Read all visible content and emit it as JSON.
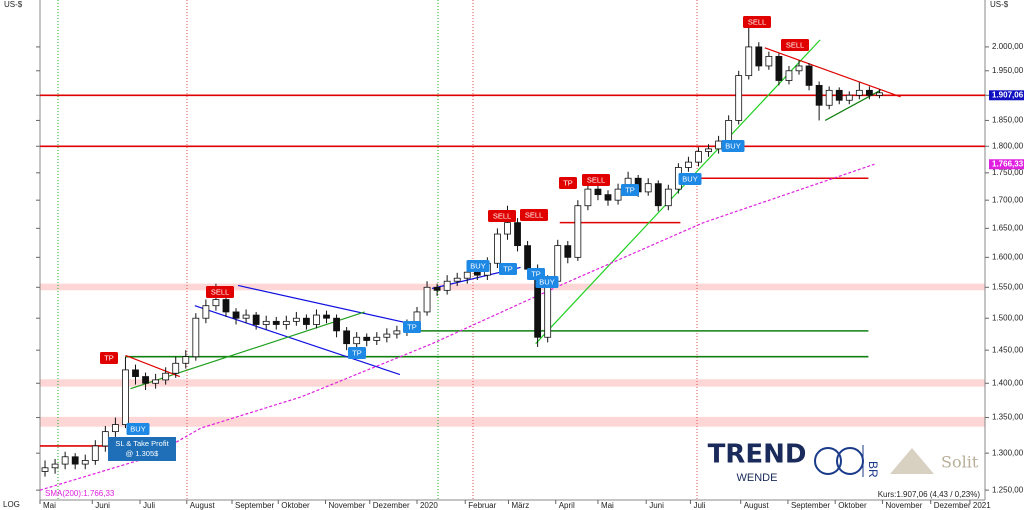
{
  "chart_data": {
    "type": "candlestick",
    "unit_left": "US-$",
    "unit_right": "US-$",
    "scale_label": "LOG",
    "log": true,
    "ylim": [
      1237,
      2102
    ],
    "yticks": [
      {
        "value": 1250,
        "label": "1.250,00"
      },
      {
        "value": 1300,
        "label": "1.300,00"
      },
      {
        "value": 1350,
        "label": "1.350,00"
      },
      {
        "value": 1400,
        "label": "1.400,00"
      },
      {
        "value": 1450,
        "label": "1.450,00"
      },
      {
        "value": 1500,
        "label": "1.500,00"
      },
      {
        "value": 1550,
        "label": "1.550,00"
      },
      {
        "value": 1600,
        "label": "1.600,00"
      },
      {
        "value": 1650,
        "label": "1.650,00"
      },
      {
        "value": 1700,
        "label": "1.700,00"
      },
      {
        "value": 1750,
        "label": "1.750,00"
      },
      {
        "value": 1800,
        "label": "1.800,00"
      },
      {
        "value": 1850,
        "label": "1.850,00"
      },
      {
        "value": 1900,
        "label": "1.900,00"
      },
      {
        "value": 1950,
        "label": "1.950,00"
      },
      {
        "value": 2000,
        "label": "2.000,00"
      }
    ],
    "xlim": [
      0,
      94
    ],
    "xticks": [
      {
        "value": 0,
        "label": "Mai"
      },
      {
        "value": 5.2,
        "label": "Juni"
      },
      {
        "value": 9.95,
        "label": "Juli"
      },
      {
        "value": 14.6,
        "label": "August"
      },
      {
        "value": 19.1,
        "label": "September"
      },
      {
        "value": 23.7,
        "label": "Oktober"
      },
      {
        "value": 28.4,
        "label": "November"
      },
      {
        "value": 32.8,
        "label": "Dezember"
      },
      {
        "value": 37.5,
        "label": "2020"
      },
      {
        "value": 42.3,
        "label": "Februar"
      },
      {
        "value": 46.6,
        "label": "März"
      },
      {
        "value": 51.3,
        "label": "April"
      },
      {
        "value": 55.5,
        "label": "Mai"
      },
      {
        "value": 60.3,
        "label": "Juni"
      },
      {
        "value": 64.7,
        "label": "Juli"
      },
      {
        "value": 69.7,
        "label": "August"
      },
      {
        "value": 74.4,
        "label": "September"
      },
      {
        "value": 79.1,
        "label": "Oktober"
      },
      {
        "value": 83.8,
        "label": "November"
      },
      {
        "value": 88.6,
        "label": "Dezember"
      },
      {
        "value": 92.5,
        "label": "2021"
      }
    ],
    "candles": [
      [
        1275,
        1290,
        1268,
        1280
      ],
      [
        1280,
        1292,
        1272,
        1285
      ],
      [
        1285,
        1302,
        1278,
        1295
      ],
      [
        1295,
        1300,
        1278,
        1285
      ],
      [
        1285,
        1298,
        1278,
        1290
      ],
      [
        1290,
        1318,
        1284,
        1310
      ],
      [
        1310,
        1338,
        1302,
        1330
      ],
      [
        1330,
        1350,
        1322,
        1340
      ],
      [
        1340,
        1440,
        1335,
        1420
      ],
      [
        1420,
        1428,
        1398,
        1410
      ],
      [
        1410,
        1416,
        1390,
        1400
      ],
      [
        1400,
        1414,
        1392,
        1405
      ],
      [
        1405,
        1424,
        1398,
        1415
      ],
      [
        1415,
        1440,
        1408,
        1430
      ],
      [
        1430,
        1450,
        1422,
        1440
      ],
      [
        1440,
        1508,
        1434,
        1500
      ],
      [
        1500,
        1530,
        1492,
        1520
      ],
      [
        1520,
        1556,
        1512,
        1530
      ],
      [
        1530,
        1536,
        1502,
        1510
      ],
      [
        1510,
        1516,
        1490,
        1500
      ],
      [
        1500,
        1514,
        1492,
        1505
      ],
      [
        1505,
        1510,
        1482,
        1490
      ],
      [
        1490,
        1504,
        1482,
        1495
      ],
      [
        1495,
        1502,
        1482,
        1490
      ],
      [
        1490,
        1504,
        1482,
        1495
      ],
      [
        1495,
        1510,
        1488,
        1500
      ],
      [
        1500,
        1506,
        1482,
        1490
      ],
      [
        1490,
        1514,
        1484,
        1505
      ],
      [
        1505,
        1512,
        1492,
        1500
      ],
      [
        1500,
        1506,
        1470,
        1480
      ],
      [
        1480,
        1486,
        1450,
        1460
      ],
      [
        1460,
        1478,
        1452,
        1470
      ],
      [
        1470,
        1476,
        1456,
        1465
      ],
      [
        1465,
        1478,
        1458,
        1470
      ],
      [
        1470,
        1484,
        1462,
        1475
      ],
      [
        1475,
        1488,
        1468,
        1480
      ],
      [
        1480,
        1498,
        1472,
        1490
      ],
      [
        1490,
        1518,
        1484,
        1510
      ],
      [
        1510,
        1560,
        1504,
        1550
      ],
      [
        1550,
        1556,
        1536,
        1545
      ],
      [
        1545,
        1570,
        1538,
        1560
      ],
      [
        1560,
        1574,
        1552,
        1565
      ],
      [
        1565,
        1584,
        1556,
        1575
      ],
      [
        1575,
        1582,
        1562,
        1570
      ],
      [
        1570,
        1600,
        1562,
        1590
      ],
      [
        1590,
        1650,
        1582,
        1640
      ],
      [
        1640,
        1690,
        1630,
        1660
      ],
      [
        1660,
        1668,
        1610,
        1620
      ],
      [
        1620,
        1628,
        1570,
        1580
      ],
      [
        1580,
        1588,
        1455,
        1470
      ],
      [
        1470,
        1570,
        1462,
        1560
      ],
      [
        1560,
        1630,
        1552,
        1620
      ],
      [
        1620,
        1628,
        1590,
        1600
      ],
      [
        1600,
        1700,
        1594,
        1690
      ],
      [
        1690,
        1730,
        1682,
        1720
      ],
      [
        1720,
        1728,
        1700,
        1710
      ],
      [
        1710,
        1718,
        1690,
        1700
      ],
      [
        1700,
        1730,
        1692,
        1720
      ],
      [
        1720,
        1752,
        1712,
        1740
      ],
      [
        1740,
        1746,
        1706,
        1715
      ],
      [
        1715,
        1740,
        1708,
        1730
      ],
      [
        1730,
        1736,
        1680,
        1690
      ],
      [
        1690,
        1728,
        1682,
        1720
      ],
      [
        1720,
        1768,
        1712,
        1760
      ],
      [
        1760,
        1780,
        1752,
        1770
      ],
      [
        1770,
        1798,
        1762,
        1790
      ],
      [
        1790,
        1804,
        1780,
        1795
      ],
      [
        1795,
        1820,
        1786,
        1810
      ],
      [
        1810,
        1860,
        1802,
        1850
      ],
      [
        1850,
        1950,
        1842,
        1940
      ],
      [
        1940,
        2050,
        1932,
        2000
      ],
      [
        2000,
        2010,
        1950,
        1960
      ],
      [
        1960,
        1990,
        1952,
        1980
      ],
      [
        1980,
        1986,
        1920,
        1930
      ],
      [
        1930,
        1960,
        1922,
        1950
      ],
      [
        1950,
        1972,
        1942,
        1960
      ],
      [
        1960,
        1966,
        1910,
        1920
      ],
      [
        1920,
        1928,
        1850,
        1880
      ],
      [
        1880,
        1918,
        1872,
        1910
      ],
      [
        1910,
        1916,
        1882,
        1890
      ],
      [
        1890,
        1908,
        1882,
        1900
      ],
      [
        1900,
        1926,
        1892,
        1910
      ],
      [
        1910,
        1918,
        1892,
        1900
      ],
      [
        1900,
        1912,
        1894,
        1905
      ]
    ],
    "sma": {
      "name": "SMA(200):1.766,33",
      "color": "#e020e0",
      "x": [
        0,
        11,
        16,
        26,
        39,
        52,
        66,
        83
      ],
      "values": [
        1250,
        1295,
        1335,
        1380,
        1460,
        1555,
        1660,
        1766
      ]
    },
    "levels": [
      {
        "value": 1900,
        "color": "#e00000",
        "from": 0,
        "to": 94
      },
      {
        "value": 1800,
        "color": "#e00000",
        "from": 0,
        "to": 94
      },
      {
        "value": 1740,
        "color": "#e00000",
        "from": 64.7,
        "to": 82.4
      },
      {
        "value": 1660,
        "color": "#e00000",
        "from": 51.7,
        "to": 63.7
      },
      {
        "value": 1480,
        "color": "#108010",
        "from": 36.3,
        "to": 82.4
      },
      {
        "value": 1440,
        "color": "#108010",
        "from": 8.5,
        "to": 82.4
      },
      {
        "value": 1310,
        "color": "#e00000",
        "from": 0,
        "to": 8
      }
    ],
    "zones": [
      [
        1545,
        1556
      ],
      [
        1395,
        1406
      ],
      [
        1337,
        1351
      ]
    ],
    "zone_color": "#ffd6d6",
    "trendlines": [
      {
        "color": "#1010e0",
        "x": [
          19.7,
          37.8
        ],
        "y": [
          1553,
          1488
        ]
      },
      {
        "color": "#1010e0",
        "x": [
          15.4,
          35.8
        ],
        "y": [
          1520,
          1413
        ]
      },
      {
        "color": "#20a020",
        "x": [
          9.0,
          32.3
        ],
        "y": [
          1392,
          1510
        ]
      },
      {
        "color": "#1010e0",
        "x": [
          39.0,
          47.8
        ],
        "y": [
          1548,
          1583
        ]
      },
      {
        "color": "#20d020",
        "x": [
          49.3,
          77.6
        ],
        "y": [
          1460,
          2015
        ]
      },
      {
        "color": "#e00000",
        "x": [
          72.1,
          85.6
        ],
        "y": [
          1998,
          1897
        ]
      },
      {
        "color": "#108010",
        "x": [
          78.1,
          83.6
        ],
        "y": [
          1850,
          1910
        ]
      },
      {
        "color": "#e00000",
        "x": [
          8.5,
          13.9
        ],
        "y": [
          1442,
          1410
        ]
      }
    ],
    "signals": [
      {
        "label": "SELL",
        "color": "#e00000"
      },
      {
        "label": "TP",
        "color": "#e00000"
      },
      {
        "label": "BUY",
        "color": "#1e88e5"
      },
      {
        "label": "BUY",
        "color": "#1e88e5"
      },
      {
        "label": "TP",
        "color": "#1e88e5"
      },
      {
        "label": "TP",
        "color": "#1e88e5"
      },
      {
        "label": "BUY",
        "color": "#1e88e5"
      },
      {
        "label": "TP",
        "color": "#1e88e5"
      },
      {
        "label": "TP",
        "color": "#1e88e5"
      },
      {
        "label": "SELL",
        "color": "#e00000"
      },
      {
        "label": "SELL",
        "color": "#e00000"
      },
      {
        "label": "TP",
        "color": "#e00000"
      },
      {
        "label": "SELL",
        "color": "#e00000"
      },
      {
        "label": "TP",
        "color": "#1e88e5"
      },
      {
        "label": "BUY",
        "color": "#1e88e5"
      },
      {
        "label": "BUY",
        "color": "#1e88e5"
      },
      {
        "label": "SELL",
        "color": "#e00000"
      },
      {
        "label": "SELL",
        "color": "#e00000"
      }
    ],
    "note": [
      "SL & Take Profit",
      "@ 1.305$"
    ],
    "price_tag": "1.907,06",
    "sma_tag": "1.766,33",
    "quote": "Kurs:1.907,06 (4,43 / 0,23%)"
  },
  "branding": {
    "trend": "TREND",
    "wende": "WENDE",
    "br": "BR",
    "solit": "Solit"
  }
}
